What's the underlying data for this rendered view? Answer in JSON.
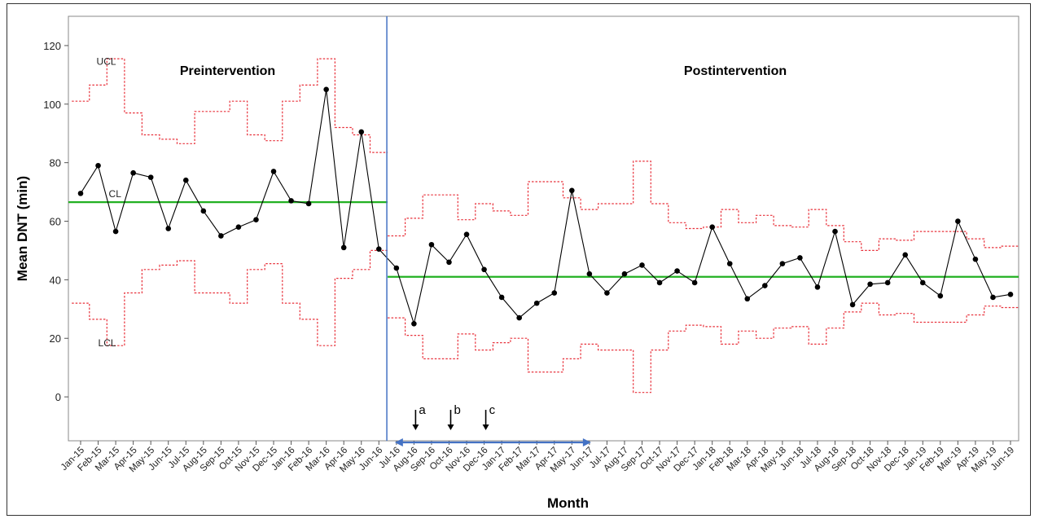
{
  "chart_data": {
    "type": "line",
    "title": "",
    "xlabel": "Month",
    "ylabel": "Mean DNT (min)",
    "ylim": [
      -15,
      130
    ],
    "yticks": [
      0,
      20,
      40,
      60,
      80,
      100,
      120
    ],
    "grid": false,
    "categories": [
      "Jan-15",
      "Feb-15",
      "Mar-15",
      "Apr-15",
      "May-15",
      "Jun-15",
      "Jul-15",
      "Aug-15",
      "Sep-15",
      "Oct-15",
      "Nov-15",
      "Dec-15",
      "Jan-16",
      "Feb-16",
      "Mar-16",
      "Apr-16",
      "May-16",
      "Jun-16",
      "Jul-16",
      "Aug-16",
      "Sep-16",
      "Oct-16",
      "Nov-16",
      "Dec-16",
      "Jan-17",
      "Feb-17",
      "Mar-17",
      "Apr-17",
      "May-17",
      "Jun-17",
      "Jul-17",
      "Aug-17",
      "Sep-17",
      "Oct-17",
      "Nov-17",
      "Dec-17",
      "Jan-18",
      "Feb-18",
      "Mar-18",
      "Apr-18",
      "May-18",
      "Jun-18",
      "Jul-18",
      "Aug-18",
      "Sep-18",
      "Oct-18",
      "Nov-18",
      "Dec-18",
      "Jan-19",
      "Feb-19",
      "Mar-19",
      "Apr-19",
      "May-19",
      "Jun-19"
    ],
    "series": [
      {
        "name": "",
        "kind": "data",
        "color": "#000000",
        "values": [
          69.5,
          79,
          56.5,
          76.5,
          75,
          57.5,
          74,
          63.5,
          55,
          58,
          60.5,
          77,
          67,
          66,
          105,
          51,
          90.5,
          50.5,
          44,
          25,
          52,
          46,
          55.5,
          43.5,
          34,
          27,
          32,
          35.5,
          70.5,
          42,
          35.5,
          42,
          45,
          39,
          43,
          39,
          58,
          45.5,
          33.5,
          38,
          45.5,
          47.5,
          37.5,
          56.5,
          31.5,
          38.5,
          39,
          48.5,
          39,
          34.5,
          60,
          47,
          34,
          35
        ]
      },
      {
        "name": "",
        "kind": "UCL",
        "color": "#e8303a",
        "values": [
          101,
          106.5,
          115.5,
          97,
          89.5,
          88,
          86.5,
          97.5,
          97.5,
          101,
          89.5,
          87.5,
          101,
          106.5,
          115.5,
          92,
          89.5,
          83.5,
          55,
          61,
          69,
          69,
          60.5,
          66,
          63.5,
          62,
          73.5,
          73.5,
          68,
          64,
          66,
          66,
          80.5,
          66,
          59.5,
          57.5,
          58,
          64,
          59.5,
          62,
          58.5,
          58,
          64,
          58.5,
          53,
          50,
          54,
          53.5,
          56.5,
          56.5,
          56.5,
          54,
          51,
          51.5
        ]
      },
      {
        "name": "",
        "kind": "LCL",
        "color": "#e8303a",
        "values": [
          32,
          26.5,
          17.5,
          35.5,
          43.5,
          45,
          46.5,
          35.5,
          35.5,
          32,
          43.5,
          45.5,
          32,
          26.5,
          17.5,
          40.5,
          43.5,
          50,
          27,
          21,
          13,
          13,
          21.5,
          16,
          18.5,
          20,
          8.5,
          8.5,
          13,
          18,
          16,
          16,
          1.5,
          16,
          22.5,
          24.5,
          24,
          18,
          22.5,
          20,
          23.5,
          24,
          18,
          23.5,
          29,
          32,
          28,
          28.5,
          25.5,
          25.5,
          25.5,
          28,
          31,
          30.5
        ]
      }
    ],
    "center_lines": [
      {
        "from": "Jan-15",
        "to": "Jun-16",
        "value": 66.5,
        "color": "#22b022"
      },
      {
        "from": "Jul-16",
        "to": "Jun-19",
        "value": 41,
        "color": "#22b022"
      }
    ],
    "line_labels": {
      "ucl": "UCL",
      "cl": "CL",
      "lcl": "LCL"
    },
    "phases": [
      {
        "label": "Preintervention"
      },
      {
        "label": "Postintervention"
      }
    ],
    "phase_divider_color": "#4472c4",
    "interventions": [
      {
        "label": "a",
        "at": "Aug-16"
      },
      {
        "label": "b",
        "at": "Oct-16"
      },
      {
        "label": "c",
        "at": "Dec-16"
      }
    ],
    "intervention_period": {
      "from": "Jul-16",
      "to": "Jun-17",
      "color": "#4472c4"
    }
  }
}
